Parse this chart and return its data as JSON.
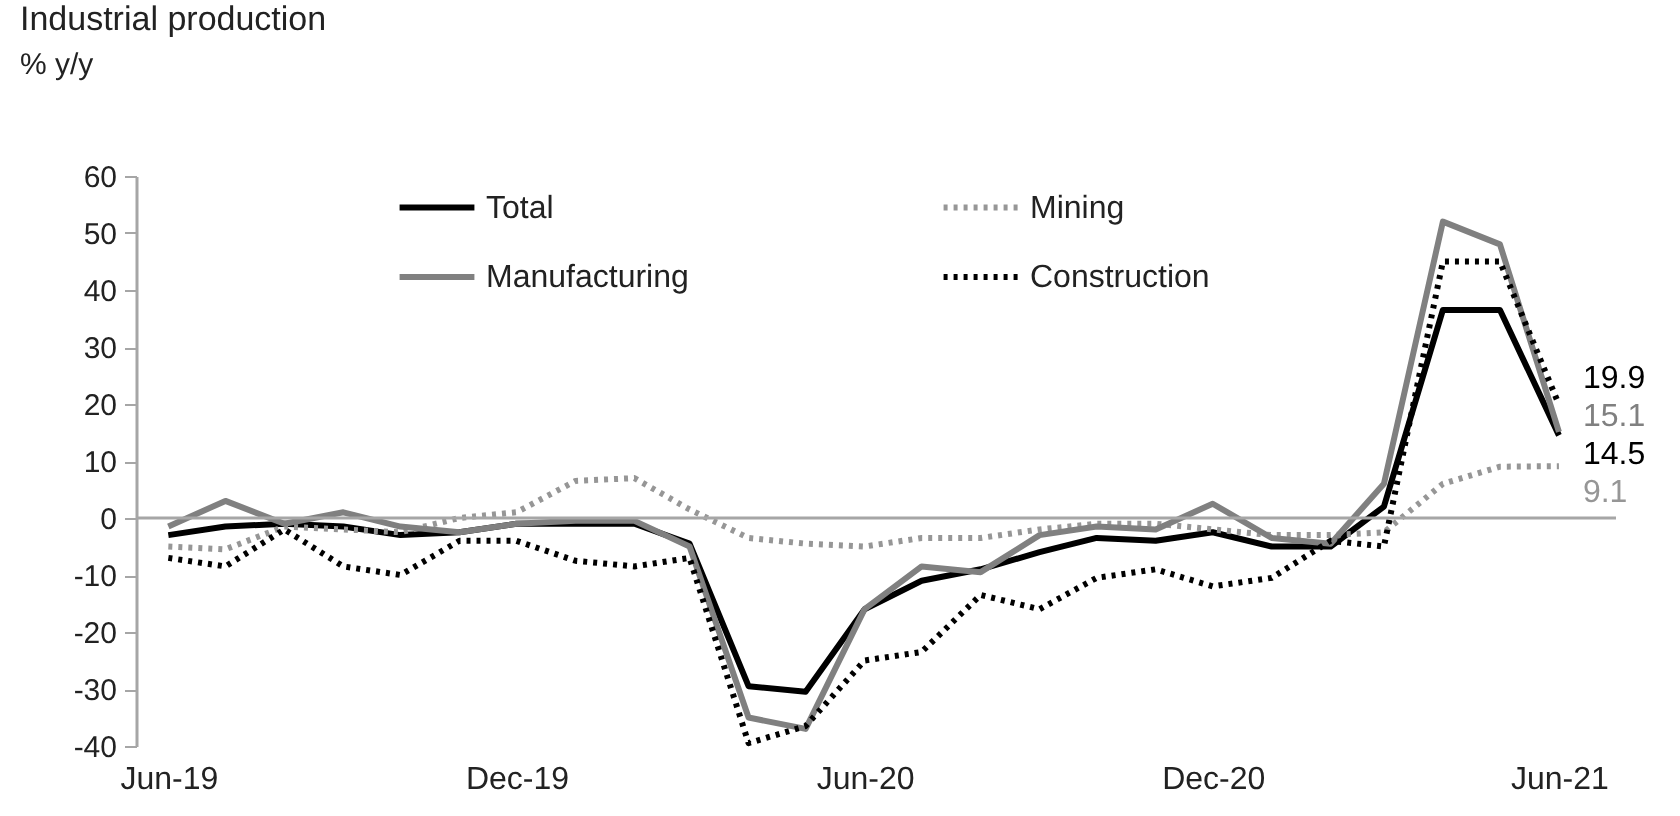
{
  "chart_data": {
    "type": "line",
    "title": "Industrial production",
    "subtitle": "% y/y",
    "x": [
      "2019-06",
      "2019-07",
      "2019-08",
      "2019-09",
      "2019-10",
      "2019-11",
      "2019-12",
      "2020-01",
      "2020-02",
      "2020-03",
      "2020-04",
      "2020-05",
      "2020-06",
      "2020-07",
      "2020-08",
      "2020-09",
      "2020-10",
      "2020-11",
      "2020-12",
      "2021-01",
      "2021-02",
      "2021-03",
      "2021-04",
      "2021-05",
      "2021-06"
    ],
    "series": [
      {
        "name": "Total",
        "color": "#000000",
        "line_style": "solid",
        "values": [
          -3,
          -1.5,
          -1,
          -1.5,
          -3,
          -2.5,
          -1,
          -1,
          -1,
          -4.5,
          -29.5,
          -30.5,
          -16,
          -11,
          -9,
          -6,
          -3.5,
          -4,
          -2.5,
          -5,
          -5,
          2,
          36.5,
          36.5,
          14.5
        ],
        "value_labels": [
          null,
          null,
          null,
          null,
          null,
          null,
          null,
          null,
          null,
          null,
          null,
          null,
          null,
          null,
          null,
          null,
          null,
          null,
          null,
          null,
          null,
          null,
          null,
          null,
          "14.5"
        ]
      },
      {
        "name": "Mining",
        "color": "#969696",
        "line_style": "dotted",
        "values": [
          -5,
          -5.5,
          -1.5,
          -2,
          -2.5,
          0,
          1,
          6.5,
          7,
          1.5,
          -3.5,
          -4.5,
          -5,
          -3.5,
          -3.5,
          -2,
          -1,
          -1,
          -2,
          -3,
          -3,
          -2.5,
          6,
          9,
          9.1
        ],
        "value_labels": [
          null,
          null,
          null,
          null,
          null,
          null,
          null,
          null,
          null,
          null,
          null,
          null,
          null,
          null,
          null,
          null,
          null,
          null,
          null,
          null,
          null,
          null,
          null,
          null,
          "9.1"
        ]
      },
      {
        "name": "Manufacturing",
        "color": "#808080",
        "line_style": "solid",
        "values": [
          -1.5,
          3,
          -1,
          1,
          -1.5,
          -2.5,
          -1,
          -0.5,
          -0.5,
          -5,
          -35,
          -37,
          -16,
          -8.5,
          -9.5,
          -3,
          -1.5,
          -2,
          2.5,
          -3.5,
          -4.5,
          6,
          52,
          48,
          15.1
        ],
        "value_labels": [
          null,
          null,
          null,
          null,
          null,
          null,
          null,
          null,
          null,
          null,
          null,
          null,
          null,
          null,
          null,
          null,
          null,
          null,
          null,
          null,
          null,
          null,
          null,
          null,
          "15.1"
        ]
      },
      {
        "name": "Construction",
        "color": "#000000",
        "line_style": "dotted",
        "values": [
          -7,
          -8.5,
          -2,
          -8.5,
          -10,
          -4,
          -4,
          -7.5,
          -8.5,
          -7,
          -39.5,
          -36.5,
          -25,
          -23.5,
          -13.5,
          -16,
          -10.5,
          -9,
          -12,
          -10.5,
          -4,
          -5,
          45,
          45,
          19.9
        ],
        "value_labels": [
          null,
          null,
          null,
          null,
          null,
          null,
          null,
          null,
          null,
          null,
          null,
          null,
          null,
          null,
          null,
          null,
          null,
          null,
          null,
          null,
          null,
          null,
          null,
          null,
          "19.9"
        ]
      }
    ],
    "xlim": [
      "2019-05-15",
      "2021-07-01"
    ],
    "xticks": [
      {
        "value": "2019-06",
        "label": "Jun-19"
      },
      {
        "value": "2019-12",
        "label": "Dec-19"
      },
      {
        "value": "2020-06",
        "label": "Jun-20"
      },
      {
        "value": "2020-12",
        "label": "Dec-20"
      },
      {
        "value": "2021-06",
        "label": "Jun-21"
      }
    ],
    "ylim": [
      -40,
      60
    ],
    "yticks": [
      -40,
      -30,
      -20,
      -10,
      0,
      10,
      20,
      30,
      40,
      50,
      60
    ],
    "ref_lines": [
      {
        "axis": "y",
        "value": 0,
        "color": "#a6a6a6"
      }
    ],
    "grid": false,
    "legend": "top",
    "marker": "none"
  }
}
